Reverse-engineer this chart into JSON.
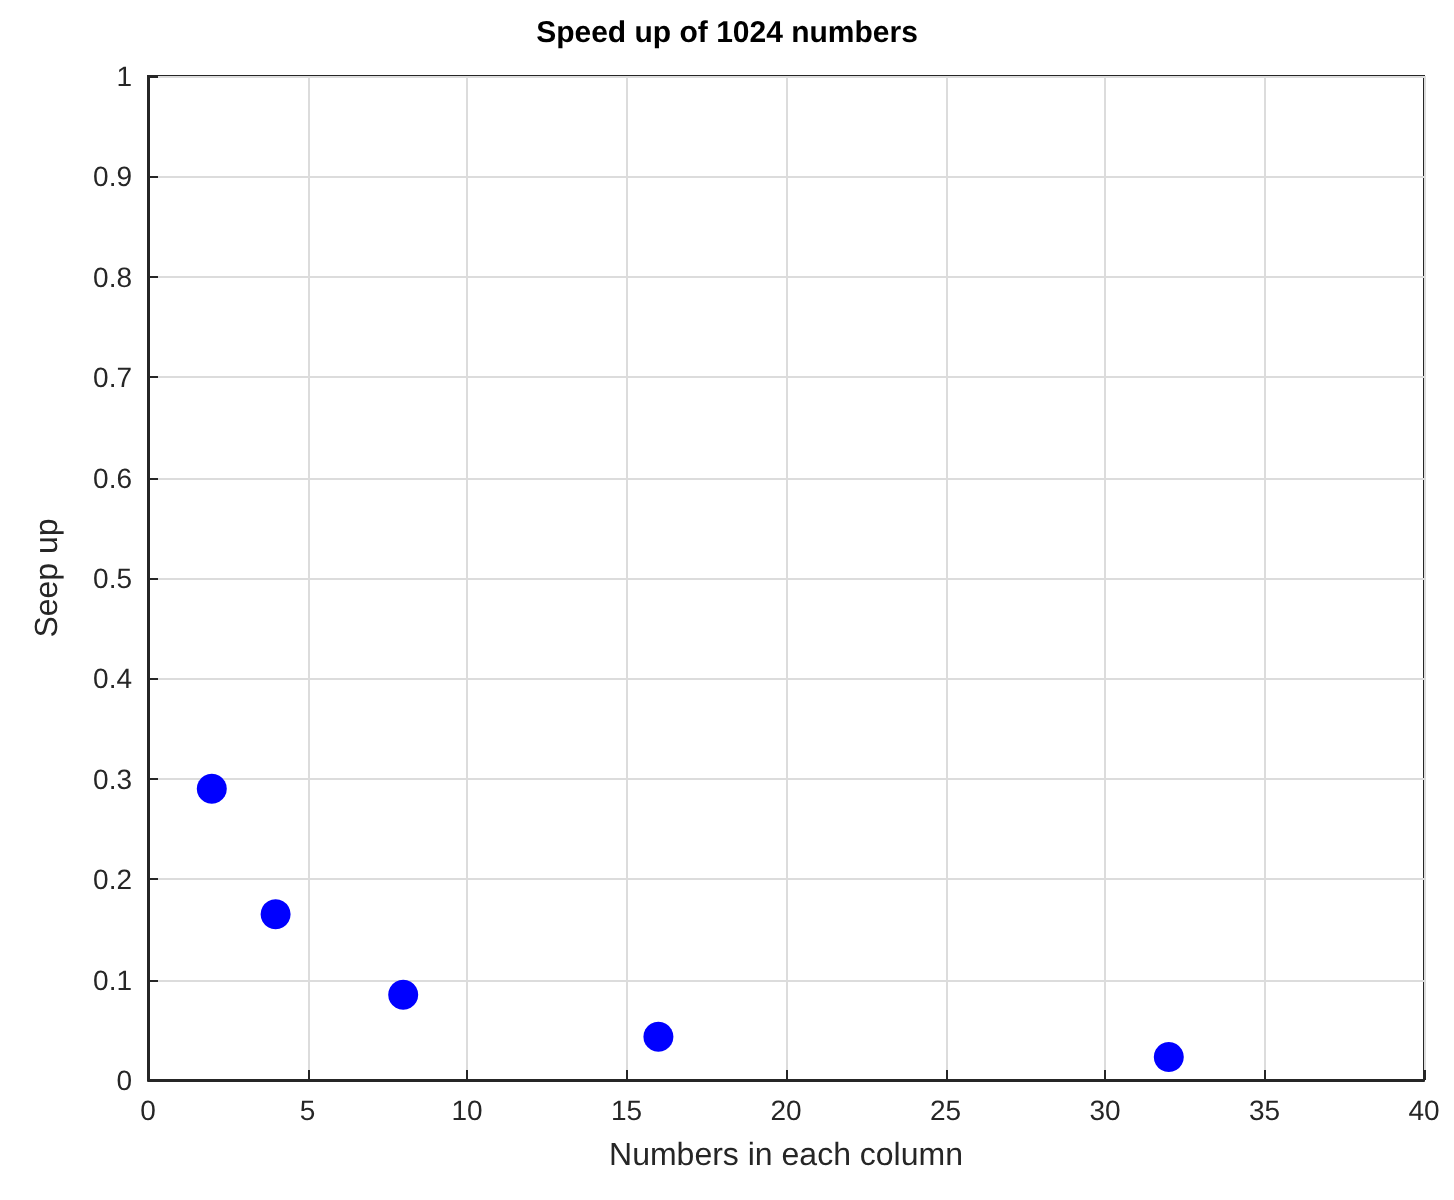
{
  "chart_data": {
    "type": "scatter",
    "title": "Speed up of 1024 numbers",
    "xlabel": "Numbers in each column",
    "ylabel": "Seep up",
    "x": [
      2,
      4,
      8,
      16,
      32
    ],
    "series": [
      {
        "color": "#0000ff",
        "values": [
          0.29,
          0.165,
          0.085,
          0.043,
          0.023
        ]
      }
    ],
    "xlim": [
      0,
      40
    ],
    "xticks": [
      0,
      5,
      10,
      15,
      20,
      25,
      30,
      35,
      40
    ],
    "ylim": [
      0,
      1
    ],
    "yticks": [
      0,
      0.1,
      0.2,
      0.3,
      0.4,
      0.5,
      0.6,
      0.7,
      0.8,
      0.9,
      1
    ],
    "grid": true,
    "marker": "circle"
  }
}
